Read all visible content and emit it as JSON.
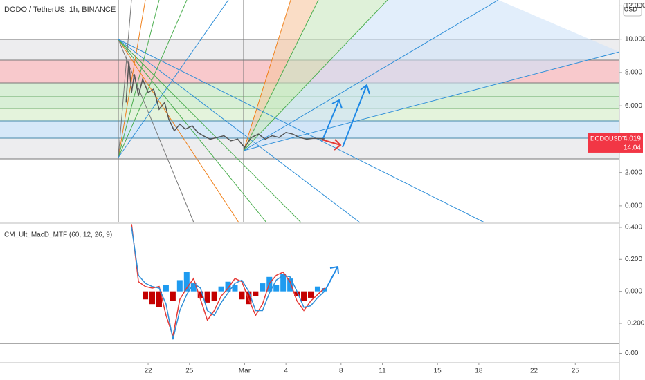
{
  "header": {
    "title": "DODO / TetherUS, 1h, BINANCE",
    "currency": "USDT"
  },
  "chart_data": [
    {
      "type": "line",
      "ylim": [
        -1,
        12.35
      ],
      "xlim": [
        11.25,
        56.2
      ],
      "yticks": [
        {
          "value": 12,
          "label": "12.000"
        },
        {
          "value": 10,
          "label": "10.000"
        },
        {
          "value": 8,
          "label": "8.000"
        },
        {
          "value": 6,
          "label": "6.000"
        },
        {
          "value": 2,
          "label": "2.000"
        },
        {
          "value": 0,
          "label": "0.000"
        }
      ],
      "xticks": [
        {
          "value": 22,
          "label": "22"
        },
        {
          "value": 25,
          "label": "25"
        },
        {
          "value": 29,
          "label": "Mar"
        },
        {
          "value": 32,
          "label": "4"
        },
        {
          "value": 36,
          "label": "8"
        },
        {
          "value": 39,
          "label": "11"
        },
        {
          "value": 43,
          "label": "15"
        },
        {
          "value": 46,
          "label": "18"
        },
        {
          "value": 50,
          "label": "22"
        },
        {
          "value": 53,
          "label": "25"
        }
      ],
      "x": [
        20.4,
        20.6,
        20.8,
        21.0,
        21.3,
        21.6,
        22.0,
        22.4,
        22.8,
        23.2,
        23.5,
        23.9,
        24.3,
        24.7,
        25.2,
        25.6,
        26.0,
        26.5,
        27.0,
        27.5,
        28.0,
        28.5,
        29.0,
        29.5,
        30.0,
        30.5,
        31.0,
        31.5,
        32.0,
        32.5,
        33.0,
        33.5,
        34.0,
        34.8
      ],
      "values": [
        6.2,
        8.7,
        6.8,
        7.9,
        6.6,
        7.6,
        6.8,
        7.0,
        5.8,
        6.2,
        5.2,
        4.5,
        4.9,
        4.6,
        4.8,
        4.4,
        4.2,
        4.0,
        4.1,
        4.2,
        3.9,
        4.0,
        3.5,
        4.1,
        4.3,
        4.0,
        4.2,
        4.1,
        4.4,
        4.3,
        4.1,
        4.0,
        4.05,
        4.019
      ],
      "color": "#555555",
      "price_tag": {
        "symbol": "DODOUSDT",
        "value": 4.019,
        "value_label": "4.019",
        "countdown": "14:04",
        "color": "#f23645"
      }
    },
    {
      "type": "macd",
      "title": "CM_Ult_MacD_MTF (60, 12, 26, 9)",
      "ylim": [
        -0.325,
        0.417
      ],
      "yticks": [
        {
          "value": 0.4,
          "label": "0.400"
        },
        {
          "value": 0.2,
          "label": "0.200"
        },
        {
          "value": 0,
          "label": "0.000"
        },
        {
          "value": -0.2,
          "label": "-0.200"
        }
      ],
      "x": [
        20.8,
        21.3,
        21.8,
        22.3,
        22.8,
        23.3,
        23.8,
        24.3,
        24.8,
        25.3,
        25.8,
        26.3,
        26.8,
        27.3,
        27.8,
        28.3,
        28.8,
        29.3,
        29.8,
        30.3,
        30.8,
        31.3,
        31.8,
        32.3,
        32.8,
        33.3,
        33.8,
        34.3,
        34.8
      ],
      "histogram": {
        "values": [
          null,
          null,
          -0.05,
          -0.08,
          -0.1,
          0.04,
          -0.06,
          0.07,
          0.12,
          0.05,
          -0.04,
          -0.07,
          -0.06,
          0.03,
          0.06,
          0.04,
          -0.05,
          -0.08,
          -0.03,
          0.05,
          0.09,
          0.04,
          0.11,
          0.08,
          -0.03,
          -0.06,
          -0.04,
          0.03,
          0.02
        ],
        "up_color": "#1e9bf0",
        "down_color": "#c40000"
      },
      "series": [
        {
          "color": "#e53935",
          "values": [
            0.42,
            0.06,
            0.03,
            0.02,
            0.03,
            -0.15,
            -0.28,
            -0.05,
            0.02,
            0.08,
            -0.05,
            -0.18,
            -0.12,
            -0.03,
            0.02,
            0.08,
            0.06,
            -0.05,
            -0.15,
            -0.08,
            0.05,
            0.1,
            0.12,
            0.06,
            -0.06,
            -0.12,
            -0.06,
            -0.02,
            0.02
          ]
        },
        {
          "color": "#2f8fd8",
          "values": [
            0.4,
            0.1,
            0.05,
            0.03,
            0.02,
            -0.08,
            -0.3,
            -0.12,
            -0.02,
            0.05,
            0.02,
            -0.12,
            -0.15,
            -0.07,
            -0.01,
            0.05,
            0.07,
            0.0,
            -0.12,
            -0.12,
            -0.01,
            0.07,
            0.1,
            0.09,
            0.0,
            -0.1,
            -0.09,
            -0.04,
            0.0
          ]
        }
      ]
    },
    {
      "type": "panel",
      "yticks": [
        {
          "value": 0,
          "label": "0.00"
        }
      ]
    }
  ]
}
